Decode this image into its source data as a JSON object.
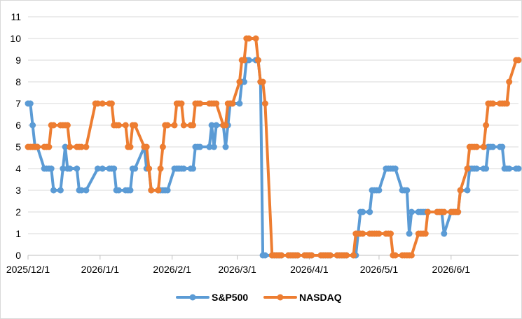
{
  "chart_data": {
    "type": "line",
    "title": "",
    "xlabel": "",
    "ylabel": "",
    "ylim": [
      0,
      11
    ],
    "y_ticks": [
      0,
      1,
      2,
      3,
      4,
      5,
      6,
      7,
      8,
      9,
      10,
      11
    ],
    "x_range": [
      "2025-12-01",
      "2026-06-30"
    ],
    "x_ticks": [
      {
        "date": "2025-12-01",
        "label": "2025/12/1"
      },
      {
        "date": "2026-01-01",
        "label": "2026/1/1"
      },
      {
        "date": "2026-02-01",
        "label": "2026/2/1"
      },
      {
        "date": "2026-03-01",
        "label": "2026/3/1"
      },
      {
        "date": "2026-04-01",
        "label": "2026/4/1"
      },
      {
        "date": "2026-05-01",
        "label": "2026/5/1"
      },
      {
        "date": "2026-06-01",
        "label": "2026/6/1"
      }
    ],
    "grid": "horizontal",
    "legend": "bottom",
    "series": [
      {
        "name": "S&P500",
        "color": "#5b9bd5",
        "points": [
          [
            "2025-12-01",
            7
          ],
          [
            "2025-12-02",
            7
          ],
          [
            "2025-12-03",
            6
          ],
          [
            "2025-12-04",
            5
          ],
          [
            "2025-12-05",
            5
          ],
          [
            "2025-12-08",
            4
          ],
          [
            "2025-12-09",
            4
          ],
          [
            "2025-12-10",
            4
          ],
          [
            "2025-12-11",
            4
          ],
          [
            "2025-12-12",
            3
          ],
          [
            "2025-12-15",
            3
          ],
          [
            "2025-12-16",
            4
          ],
          [
            "2025-12-17",
            5
          ],
          [
            "2025-12-18",
            4
          ],
          [
            "2025-12-19",
            4
          ],
          [
            "2025-12-22",
            4
          ],
          [
            "2025-12-23",
            3
          ],
          [
            "2025-12-24",
            3
          ],
          [
            "2025-12-26",
            3
          ],
          [
            "2025-12-31",
            4
          ],
          [
            "2026-01-02",
            4
          ],
          [
            "2026-01-05",
            4
          ],
          [
            "2026-01-06",
            4
          ],
          [
            "2026-01-07",
            4
          ],
          [
            "2026-01-08",
            3
          ],
          [
            "2026-01-09",
            3
          ],
          [
            "2026-01-12",
            3
          ],
          [
            "2026-01-13",
            3
          ],
          [
            "2026-01-14",
            3
          ],
          [
            "2026-01-15",
            4
          ],
          [
            "2026-01-16",
            4
          ],
          [
            "2026-01-20",
            5
          ],
          [
            "2026-01-21",
            4
          ],
          [
            "2026-01-22",
            4
          ],
          [
            "2026-01-23",
            3
          ],
          [
            "2026-01-26",
            3
          ],
          [
            "2026-01-27",
            3
          ],
          [
            "2026-01-28",
            3
          ],
          [
            "2026-01-29",
            3
          ],
          [
            "2026-01-30",
            3
          ],
          [
            "2026-02-02",
            4
          ],
          [
            "2026-02-03",
            4
          ],
          [
            "2026-02-04",
            4
          ],
          [
            "2026-02-05",
            4
          ],
          [
            "2026-02-06",
            4
          ],
          [
            "2026-02-09",
            4
          ],
          [
            "2026-02-10",
            4
          ],
          [
            "2026-02-11",
            5
          ],
          [
            "2026-02-12",
            5
          ],
          [
            "2026-02-13",
            5
          ],
          [
            "2026-02-17",
            5
          ],
          [
            "2026-02-18",
            6
          ],
          [
            "2026-02-19",
            5
          ],
          [
            "2026-02-20",
            6
          ],
          [
            "2026-02-23",
            6
          ],
          [
            "2026-02-24",
            5
          ],
          [
            "2026-02-25",
            6
          ],
          [
            "2026-02-26",
            7
          ],
          [
            "2026-02-27",
            7
          ],
          [
            "2026-03-02",
            7
          ],
          [
            "2026-03-03",
            8
          ],
          [
            "2026-03-04",
            8
          ],
          [
            "2026-03-05",
            9
          ],
          [
            "2026-03-06",
            9
          ],
          [
            "2026-03-09",
            9
          ],
          [
            "2026-03-10",
            9
          ],
          [
            "2026-03-11",
            8
          ],
          [
            "2026-03-12",
            0
          ],
          [
            "2026-03-13",
            0
          ],
          [
            "2026-03-16",
            0
          ],
          [
            "2026-03-17",
            0
          ],
          [
            "2026-03-18",
            0
          ],
          [
            "2026-03-19",
            0
          ],
          [
            "2026-03-20",
            0
          ],
          [
            "2026-03-23",
            0
          ],
          [
            "2026-03-24",
            0
          ],
          [
            "2026-03-25",
            0
          ],
          [
            "2026-03-26",
            0
          ],
          [
            "2026-03-27",
            0
          ],
          [
            "2026-03-30",
            0
          ],
          [
            "2026-03-31",
            0
          ],
          [
            "2026-04-01",
            0
          ],
          [
            "2026-04-02",
            0
          ],
          [
            "2026-04-06",
            0
          ],
          [
            "2026-04-07",
            0
          ],
          [
            "2026-04-08",
            0
          ],
          [
            "2026-04-09",
            0
          ],
          [
            "2026-04-10",
            0
          ],
          [
            "2026-04-13",
            0
          ],
          [
            "2026-04-14",
            0
          ],
          [
            "2026-04-15",
            0
          ],
          [
            "2026-04-16",
            0
          ],
          [
            "2026-04-17",
            0
          ],
          [
            "2026-04-20",
            0
          ],
          [
            "2026-04-21",
            0
          ],
          [
            "2026-04-22",
            1
          ],
          [
            "2026-04-23",
            2
          ],
          [
            "2026-04-24",
            2
          ],
          [
            "2026-04-27",
            2
          ],
          [
            "2026-04-28",
            3
          ],
          [
            "2026-04-29",
            3
          ],
          [
            "2026-04-30",
            3
          ],
          [
            "2026-05-01",
            3
          ],
          [
            "2026-05-04",
            4
          ],
          [
            "2026-05-05",
            4
          ],
          [
            "2026-05-06",
            4
          ],
          [
            "2026-05-07",
            4
          ],
          [
            "2026-05-08",
            4
          ],
          [
            "2026-05-11",
            3
          ],
          [
            "2026-05-12",
            3
          ],
          [
            "2026-05-13",
            3
          ],
          [
            "2026-05-14",
            1
          ],
          [
            "2026-05-15",
            2
          ],
          [
            "2026-05-18",
            2
          ],
          [
            "2026-05-19",
            2
          ],
          [
            "2026-05-20",
            2
          ],
          [
            "2026-05-21",
            2
          ],
          [
            "2026-05-22",
            2
          ],
          [
            "2026-05-26",
            2
          ],
          [
            "2026-05-27",
            2
          ],
          [
            "2026-05-28",
            2
          ],
          [
            "2026-05-29",
            1
          ],
          [
            "2026-06-01",
            2
          ],
          [
            "2026-06-02",
            2
          ],
          [
            "2026-06-03",
            2
          ],
          [
            "2026-06-04",
            2
          ],
          [
            "2026-06-05",
            3
          ],
          [
            "2026-06-08",
            3
          ],
          [
            "2026-06-09",
            4
          ],
          [
            "2026-06-10",
            4
          ],
          [
            "2026-06-11",
            4
          ],
          [
            "2026-06-12",
            4
          ],
          [
            "2026-06-15",
            4
          ],
          [
            "2026-06-16",
            4
          ],
          [
            "2026-06-17",
            5
          ],
          [
            "2026-06-18",
            5
          ],
          [
            "2026-06-19",
            5
          ],
          [
            "2026-06-22",
            5
          ],
          [
            "2026-06-23",
            5
          ],
          [
            "2026-06-24",
            4
          ],
          [
            "2026-06-25",
            4
          ],
          [
            "2026-06-26",
            4
          ],
          [
            "2026-06-29",
            4
          ],
          [
            "2026-06-30",
            4
          ]
        ]
      },
      {
        "name": "NASDAQ",
        "color": "#ed7d31",
        "points": [
          [
            "2025-12-01",
            5
          ],
          [
            "2025-12-02",
            5
          ],
          [
            "2025-12-03",
            5
          ],
          [
            "2025-12-04",
            5
          ],
          [
            "2025-12-05",
            5
          ],
          [
            "2025-12-08",
            5
          ],
          [
            "2025-12-09",
            5
          ],
          [
            "2025-12-10",
            5
          ],
          [
            "2025-12-11",
            6
          ],
          [
            "2025-12-12",
            6
          ],
          [
            "2025-12-15",
            6
          ],
          [
            "2025-12-16",
            6
          ],
          [
            "2025-12-17",
            6
          ],
          [
            "2025-12-18",
            6
          ],
          [
            "2025-12-19",
            5
          ],
          [
            "2025-12-22",
            5
          ],
          [
            "2025-12-23",
            5
          ],
          [
            "2025-12-24",
            5
          ],
          [
            "2025-12-26",
            5
          ],
          [
            "2025-12-30",
            7
          ],
          [
            "2025-12-31",
            7
          ],
          [
            "2026-01-02",
            7
          ],
          [
            "2026-01-05",
            7
          ],
          [
            "2026-01-06",
            7
          ],
          [
            "2026-01-07",
            6
          ],
          [
            "2026-01-08",
            6
          ],
          [
            "2026-01-09",
            6
          ],
          [
            "2026-01-12",
            6
          ],
          [
            "2026-01-13",
            5
          ],
          [
            "2026-01-14",
            5
          ],
          [
            "2026-01-15",
            6
          ],
          [
            "2026-01-16",
            6
          ],
          [
            "2026-01-20",
            5
          ],
          [
            "2026-01-21",
            5
          ],
          [
            "2026-01-22",
            4
          ],
          [
            "2026-01-23",
            3
          ],
          [
            "2026-01-26",
            3
          ],
          [
            "2026-01-27",
            4
          ],
          [
            "2026-01-28",
            5
          ],
          [
            "2026-01-29",
            6
          ],
          [
            "2026-01-30",
            6
          ],
          [
            "2026-02-02",
            6
          ],
          [
            "2026-02-03",
            7
          ],
          [
            "2026-02-04",
            7
          ],
          [
            "2026-02-05",
            7
          ],
          [
            "2026-02-06",
            6
          ],
          [
            "2026-02-09",
            6
          ],
          [
            "2026-02-10",
            6
          ],
          [
            "2026-02-11",
            7
          ],
          [
            "2026-02-12",
            7
          ],
          [
            "2026-02-13",
            7
          ],
          [
            "2026-02-17",
            7
          ],
          [
            "2026-02-18",
            7
          ],
          [
            "2026-02-19",
            7
          ],
          [
            "2026-02-20",
            7
          ],
          [
            "2026-02-23",
            6
          ],
          [
            "2026-02-24",
            6
          ],
          [
            "2026-02-25",
            7
          ],
          [
            "2026-02-26",
            7
          ],
          [
            "2026-02-27",
            7
          ],
          [
            "2026-03-02",
            8
          ],
          [
            "2026-03-03",
            9
          ],
          [
            "2026-03-04",
            9
          ],
          [
            "2026-03-05",
            10
          ],
          [
            "2026-03-06",
            10
          ],
          [
            "2026-03-09",
            10
          ],
          [
            "2026-03-10",
            9
          ],
          [
            "2026-03-11",
            8
          ],
          [
            "2026-03-12",
            8
          ],
          [
            "2026-03-13",
            7
          ],
          [
            "2026-03-16",
            0
          ],
          [
            "2026-03-17",
            0
          ],
          [
            "2026-03-18",
            0
          ],
          [
            "2026-03-19",
            0
          ],
          [
            "2026-03-20",
            0
          ],
          [
            "2026-03-23",
            0
          ],
          [
            "2026-03-24",
            0
          ],
          [
            "2026-03-25",
            0
          ],
          [
            "2026-03-26",
            0
          ],
          [
            "2026-03-27",
            0
          ],
          [
            "2026-03-30",
            0
          ],
          [
            "2026-03-31",
            0
          ],
          [
            "2026-04-01",
            0
          ],
          [
            "2026-04-02",
            0
          ],
          [
            "2026-04-06",
            0
          ],
          [
            "2026-04-07",
            0
          ],
          [
            "2026-04-08",
            0
          ],
          [
            "2026-04-09",
            0
          ],
          [
            "2026-04-10",
            0
          ],
          [
            "2026-04-13",
            0
          ],
          [
            "2026-04-14",
            0
          ],
          [
            "2026-04-15",
            0
          ],
          [
            "2026-04-16",
            0
          ],
          [
            "2026-04-17",
            0
          ],
          [
            "2026-04-20",
            0
          ],
          [
            "2026-04-21",
            1
          ],
          [
            "2026-04-22",
            1
          ],
          [
            "2026-04-23",
            1
          ],
          [
            "2026-04-24",
            1
          ],
          [
            "2026-04-27",
            1
          ],
          [
            "2026-04-28",
            1
          ],
          [
            "2026-04-29",
            1
          ],
          [
            "2026-04-30",
            1
          ],
          [
            "2026-05-01",
            1
          ],
          [
            "2026-05-04",
            1
          ],
          [
            "2026-05-05",
            1
          ],
          [
            "2026-05-06",
            1
          ],
          [
            "2026-05-07",
            0
          ],
          [
            "2026-05-08",
            0
          ],
          [
            "2026-05-11",
            0
          ],
          [
            "2026-05-12",
            0
          ],
          [
            "2026-05-13",
            0
          ],
          [
            "2026-05-14",
            0
          ],
          [
            "2026-05-15",
            0
          ],
          [
            "2026-05-18",
            1
          ],
          [
            "2026-05-19",
            1
          ],
          [
            "2026-05-20",
            1
          ],
          [
            "2026-05-21",
            1
          ],
          [
            "2026-05-22",
            2
          ],
          [
            "2026-05-26",
            2
          ],
          [
            "2026-05-27",
            2
          ],
          [
            "2026-05-28",
            2
          ],
          [
            "2026-05-29",
            2
          ],
          [
            "2026-06-01",
            2
          ],
          [
            "2026-06-02",
            2
          ],
          [
            "2026-06-03",
            2
          ],
          [
            "2026-06-04",
            2
          ],
          [
            "2026-06-05",
            3
          ],
          [
            "2026-06-08",
            4
          ],
          [
            "2026-06-09",
            5
          ],
          [
            "2026-06-10",
            5
          ],
          [
            "2026-06-11",
            5
          ],
          [
            "2026-06-12",
            5
          ],
          [
            "2026-06-15",
            5
          ],
          [
            "2026-06-16",
            6
          ],
          [
            "2026-06-17",
            7
          ],
          [
            "2026-06-18",
            7
          ],
          [
            "2026-06-19",
            7
          ],
          [
            "2026-06-22",
            7
          ],
          [
            "2026-06-23",
            7
          ],
          [
            "2026-06-24",
            7
          ],
          [
            "2026-06-25",
            7
          ],
          [
            "2026-06-26",
            8
          ],
          [
            "2026-06-29",
            9
          ],
          [
            "2026-06-30",
            9
          ]
        ]
      }
    ]
  }
}
